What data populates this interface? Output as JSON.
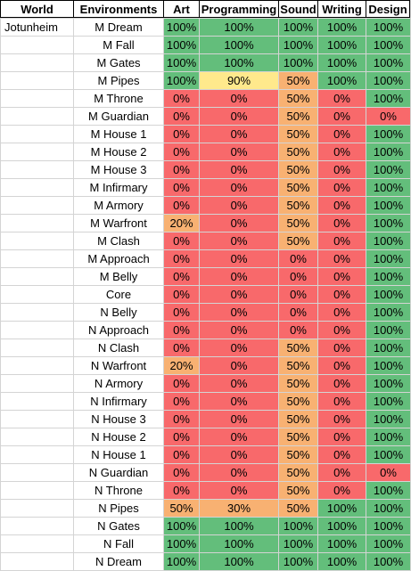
{
  "headers": [
    "World",
    "Environments",
    "Art",
    "Programming",
    "Sound",
    "Writing",
    "Design"
  ],
  "world": "Jotunheim",
  "status_colors": {
    "complete": "#63be7b",
    "high": "#ffe98c",
    "medium": "#f8b172",
    "low": "#f8696b"
  },
  "rows": [
    {
      "env": "M Dream",
      "art": "100%",
      "programming": "100%",
      "sound": "100%",
      "writing": "100%",
      "design": "100%"
    },
    {
      "env": "M Fall",
      "art": "100%",
      "programming": "100%",
      "sound": "100%",
      "writing": "100%",
      "design": "100%"
    },
    {
      "env": "M Gates",
      "art": "100%",
      "programming": "100%",
      "sound": "100%",
      "writing": "100%",
      "design": "100%"
    },
    {
      "env": "M Pipes",
      "art": "100%",
      "programming": "90%",
      "sound": "50%",
      "writing": "100%",
      "design": "100%"
    },
    {
      "env": "M Throne",
      "art": "0%",
      "programming": "0%",
      "sound": "50%",
      "writing": "0%",
      "design": "100%"
    },
    {
      "env": "M Guardian",
      "art": "0%",
      "programming": "0%",
      "sound": "50%",
      "writing": "0%",
      "design": "0%"
    },
    {
      "env": "M House 1",
      "art": "0%",
      "programming": "0%",
      "sound": "50%",
      "writing": "0%",
      "design": "100%"
    },
    {
      "env": "M House 2",
      "art": "0%",
      "programming": "0%",
      "sound": "50%",
      "writing": "0%",
      "design": "100%"
    },
    {
      "env": "M House 3",
      "art": "0%",
      "programming": "0%",
      "sound": "50%",
      "writing": "0%",
      "design": "100%"
    },
    {
      "env": "M Infirmary",
      "art": "0%",
      "programming": "0%",
      "sound": "50%",
      "writing": "0%",
      "design": "100%"
    },
    {
      "env": "M Armory",
      "art": "0%",
      "programming": "0%",
      "sound": "50%",
      "writing": "0%",
      "design": "100%"
    },
    {
      "env": "M Warfront",
      "art": "20%",
      "programming": "0%",
      "sound": "50%",
      "writing": "0%",
      "design": "100%"
    },
    {
      "env": "M Clash",
      "art": "0%",
      "programming": "0%",
      "sound": "50%",
      "writing": "0%",
      "design": "100%"
    },
    {
      "env": "M Approach",
      "art": "0%",
      "programming": "0%",
      "sound": "0%",
      "writing": "0%",
      "design": "100%"
    },
    {
      "env": "M Belly",
      "art": "0%",
      "programming": "0%",
      "sound": "0%",
      "writing": "0%",
      "design": "100%"
    },
    {
      "env": "Core",
      "art": "0%",
      "programming": "0%",
      "sound": "0%",
      "writing": "0%",
      "design": "100%"
    },
    {
      "env": "N Belly",
      "art": "0%",
      "programming": "0%",
      "sound": "0%",
      "writing": "0%",
      "design": "100%"
    },
    {
      "env": "N Approach",
      "art": "0%",
      "programming": "0%",
      "sound": "0%",
      "writing": "0%",
      "design": "100%"
    },
    {
      "env": "N Clash",
      "art": "0%",
      "programming": "0%",
      "sound": "50%",
      "writing": "0%",
      "design": "100%"
    },
    {
      "env": "N Warfront",
      "art": "20%",
      "programming": "0%",
      "sound": "50%",
      "writing": "0%",
      "design": "100%"
    },
    {
      "env": "N Armory",
      "art": "0%",
      "programming": "0%",
      "sound": "50%",
      "writing": "0%",
      "design": "100%"
    },
    {
      "env": "N Infirmary",
      "art": "0%",
      "programming": "0%",
      "sound": "50%",
      "writing": "0%",
      "design": "100%"
    },
    {
      "env": "N House 3",
      "art": "0%",
      "programming": "0%",
      "sound": "50%",
      "writing": "0%",
      "design": "100%"
    },
    {
      "env": "N House 2",
      "art": "0%",
      "programming": "0%",
      "sound": "50%",
      "writing": "0%",
      "design": "100%"
    },
    {
      "env": "N House 1",
      "art": "0%",
      "programming": "0%",
      "sound": "50%",
      "writing": "0%",
      "design": "100%"
    },
    {
      "env": "N Guardian",
      "art": "0%",
      "programming": "0%",
      "sound": "50%",
      "writing": "0%",
      "design": "0%"
    },
    {
      "env": "N Throne",
      "art": "0%",
      "programming": "0%",
      "sound": "50%",
      "writing": "0%",
      "design": "100%"
    },
    {
      "env": "N Pipes",
      "art": "50%",
      "programming": "30%",
      "sound": "50%",
      "writing": "100%",
      "design": "100%"
    },
    {
      "env": "N Gates",
      "art": "100%",
      "programming": "100%",
      "sound": "100%",
      "writing": "100%",
      "design": "100%"
    },
    {
      "env": "N Fall",
      "art": "100%",
      "programming": "100%",
      "sound": "100%",
      "writing": "100%",
      "design": "100%"
    },
    {
      "env": "N Dream",
      "art": "100%",
      "programming": "100%",
      "sound": "100%",
      "writing": "100%",
      "design": "100%"
    }
  ]
}
